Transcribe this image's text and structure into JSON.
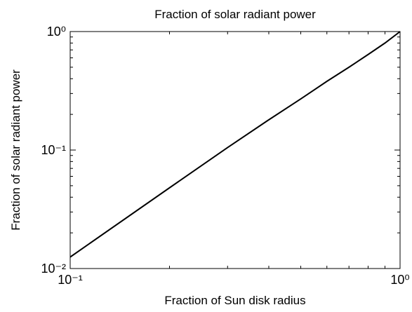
{
  "chart_data": {
    "type": "line",
    "title": "Fraction of solar radiant power",
    "x_label": "Fraction of Sun disk radius",
    "y_label": "Fraction of solar radiant power",
    "log_x": true,
    "log_y": true,
    "x": [
      0.1,
      0.2,
      0.3,
      0.4,
      0.5,
      0.6,
      0.7,
      0.8,
      0.9,
      1.0
    ],
    "series": [
      {
        "name": "Fraction of solar radiant power",
        "color": "#000000",
        "values": [
          0.0125,
          0.048,
          0.105,
          0.18,
          0.27,
          0.38,
          0.5,
          0.64,
          0.8,
          1.0
        ]
      }
    ],
    "xlim": [
      0.1,
      1
    ],
    "ylim": [
      0.01,
      1
    ],
    "xticks": [
      {
        "value": 0.1,
        "label": "10⁻¹"
      },
      {
        "value": 1,
        "label": "10⁰"
      }
    ],
    "yticks": [
      {
        "value": 0.01,
        "label": "10⁻²"
      },
      {
        "value": 0.1,
        "label": "10⁻¹"
      },
      {
        "value": 1,
        "label": "10⁰"
      }
    ],
    "xminorticks": [
      0.2,
      0.3,
      0.4,
      0.5,
      0.6,
      0.7,
      0.8,
      0.9
    ],
    "yminorticks": [
      0.02,
      0.03,
      0.04,
      0.05,
      0.06,
      0.07,
      0.08,
      0.09,
      0.2,
      0.3,
      0.4,
      0.5,
      0.6,
      0.7,
      0.8,
      0.9
    ]
  }
}
